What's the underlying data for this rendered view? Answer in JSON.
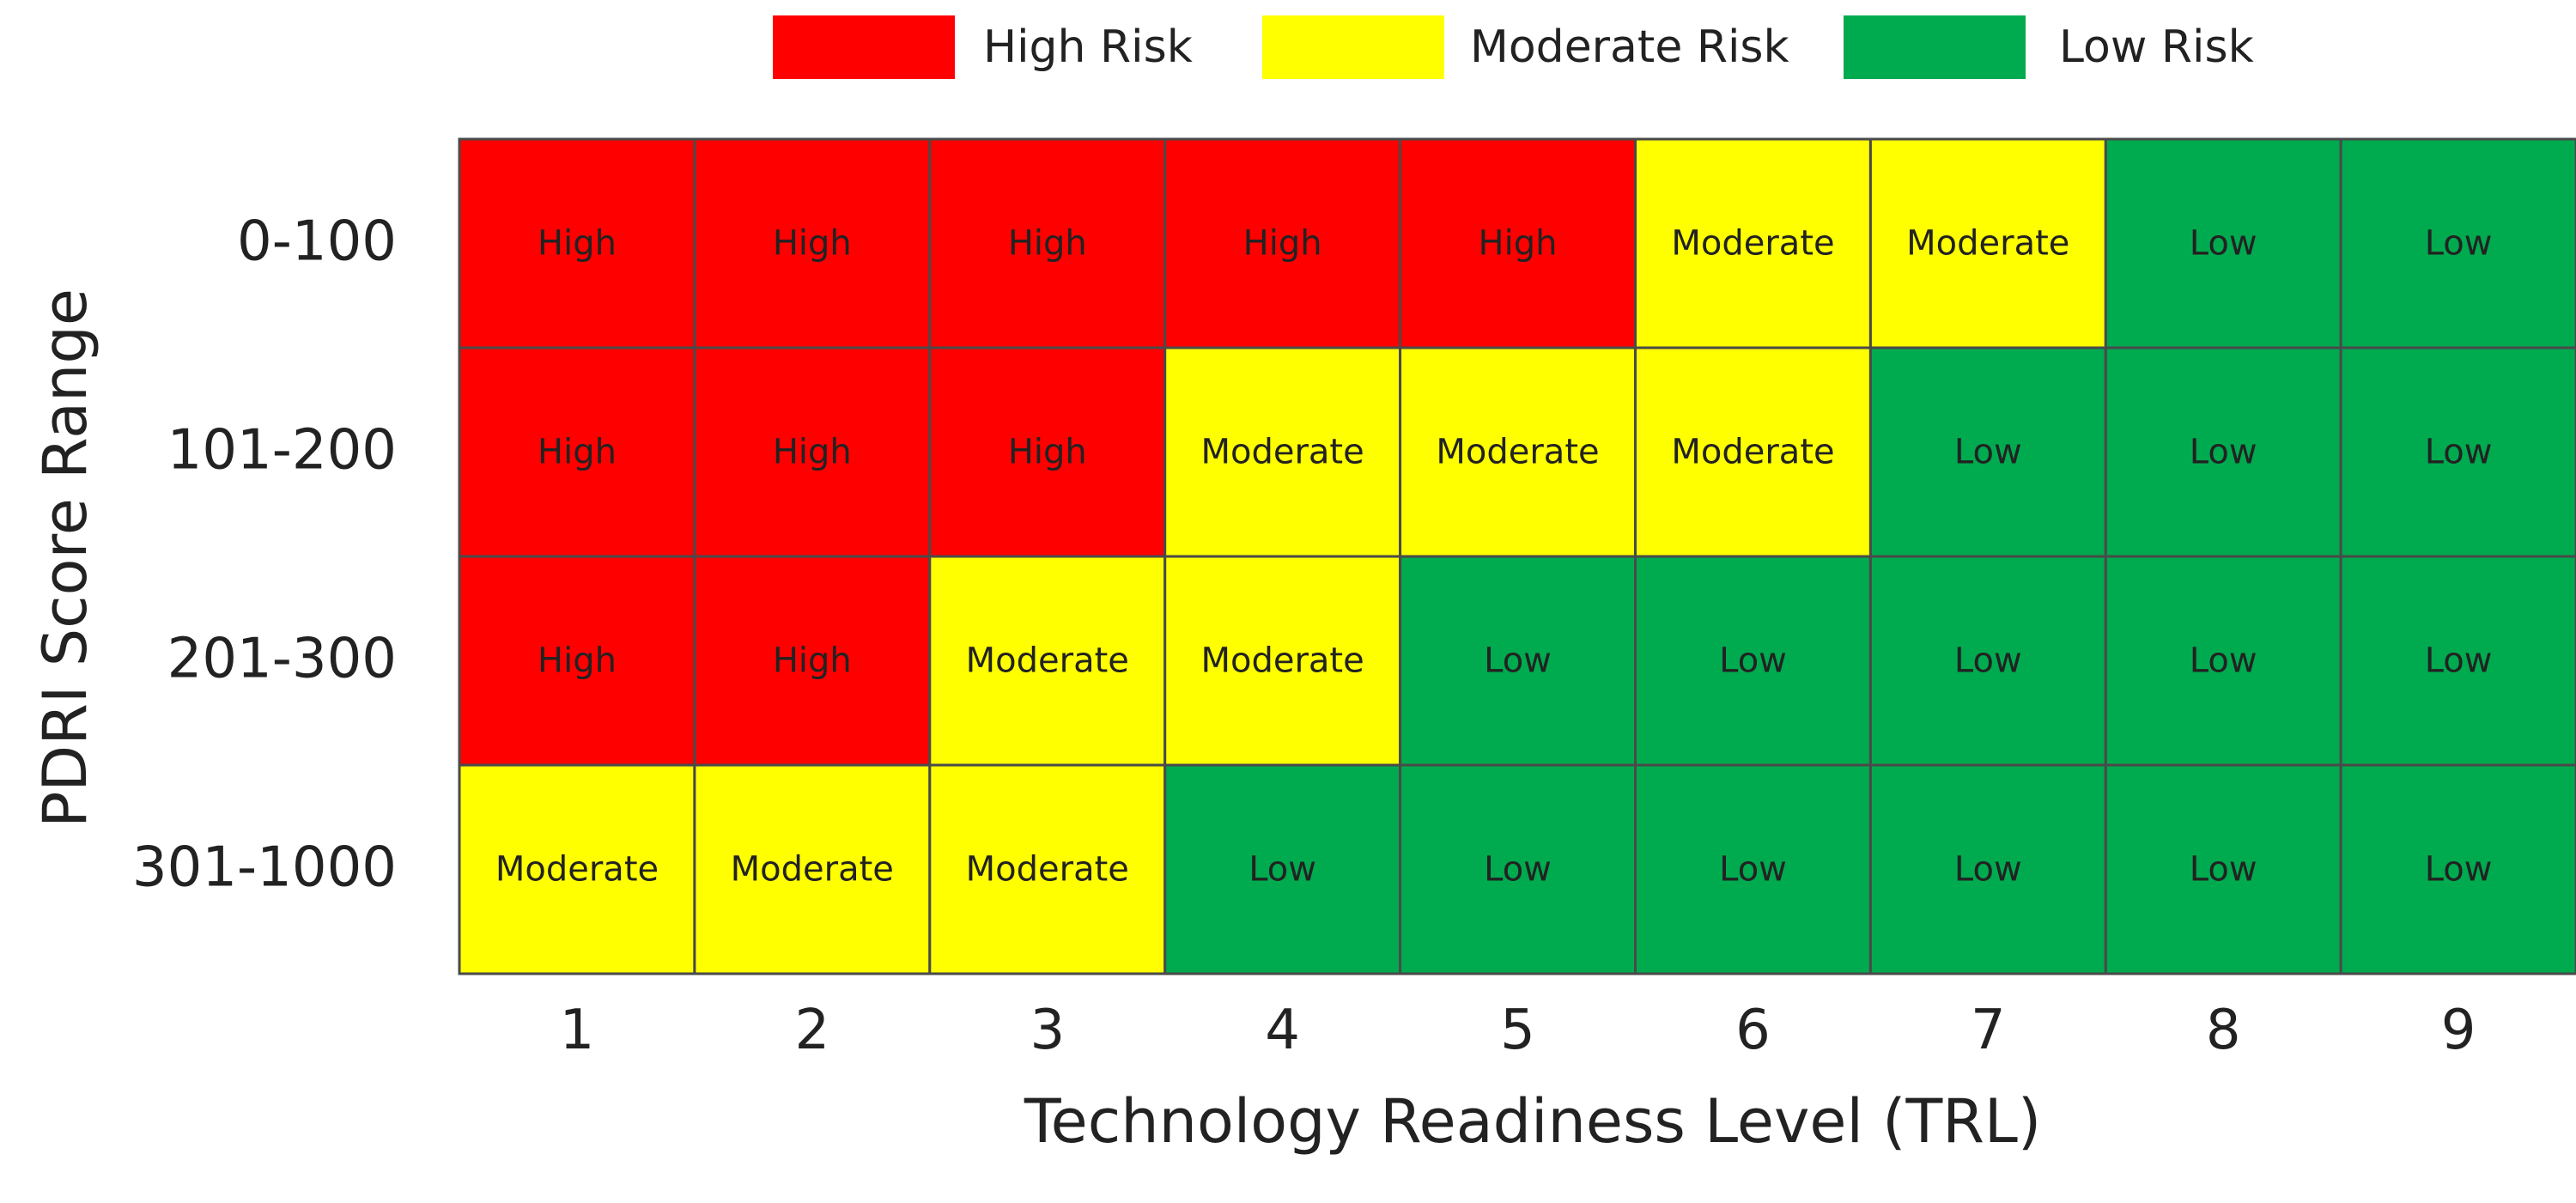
{
  "chart_data": {
    "type": "heatmap",
    "xlabel": "Technology Readiness Level (TRL)",
    "ylabel": "PDRI Score Range",
    "x_categories": [
      "1",
      "2",
      "3",
      "4",
      "5",
      "6",
      "7",
      "8",
      "9"
    ],
    "y_categories": [
      "0-100",
      "101-200",
      "201-300",
      "301-1000"
    ],
    "values": [
      [
        "High",
        "High",
        "High",
        "High",
        "High",
        "Moderate",
        "Moderate",
        "Low",
        "Low"
      ],
      [
        "High",
        "High",
        "High",
        "Moderate",
        "Moderate",
        "Moderate",
        "Low",
        "Low",
        "Low"
      ],
      [
        "High",
        "High",
        "Moderate",
        "Moderate",
        "Low",
        "Low",
        "Low",
        "Low",
        "Low"
      ],
      [
        "Moderate",
        "Moderate",
        "Moderate",
        "Low",
        "Low",
        "Low",
        "Low",
        "Low",
        "Low"
      ]
    ],
    "legend": {
      "position": "top",
      "items": [
        {
          "label": "High Risk",
          "level": "High",
          "color": "#ff0000"
        },
        {
          "label": "Moderate Risk",
          "level": "Moderate",
          "color": "#ffff00"
        },
        {
          "label": "Low Risk",
          "level": "Low",
          "color": "#00aa4f"
        }
      ]
    },
    "cell_border_color": "#4a4a4a"
  }
}
